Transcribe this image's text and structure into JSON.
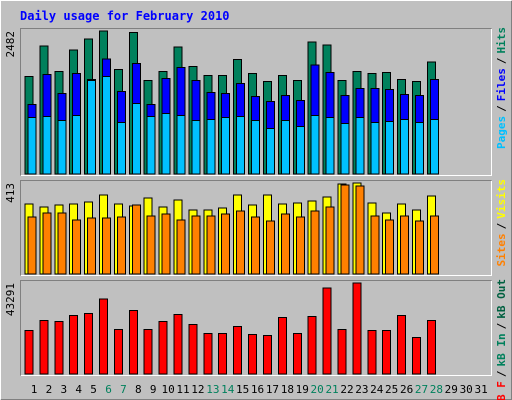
{
  "chart_data": [
    {
      "type": "bar",
      "title": "Daily usage for February 2010",
      "ylim": [
        0,
        2482
      ],
      "yticks": [
        2482
      ],
      "legend_separator": "/",
      "series": [
        {
          "name": "Pages",
          "color": "#00c0ff",
          "values": [
            983,
            1000,
            931,
            1017,
            1621,
            1690,
            896,
            1224,
            1000,
            1052,
            1017,
            931,
            948,
            983,
            1000,
            931,
            793,
            931,
            828,
            1017,
            983,
            879,
            983,
            896,
            914,
            948,
            896,
            948,
            null,
            null,
            null
          ]
        },
        {
          "name": "Files",
          "color": "#0000ff",
          "values": [
            1207,
            1724,
            1396,
            1741,
            1638,
            2000,
            1431,
            1914,
            1207,
            1655,
            1845,
            1621,
            1414,
            1396,
            1569,
            1345,
            1259,
            1362,
            1276,
            1896,
            1758,
            1362,
            1483,
            1483,
            1465,
            1379,
            1362,
            1638,
            null,
            null,
            null
          ]
        },
        {
          "name": "Hits",
          "color": "#00805c",
          "values": [
            1690,
            2224,
            1776,
            2155,
            2345,
            2482,
            1810,
            2460,
            1620,
            1776,
            2207,
            1862,
            1707,
            1707,
            1983,
            1741,
            1603,
            1707,
            1620,
            2293,
            2241,
            1620,
            1776,
            1741,
            1758,
            1638,
            1603,
            1948,
            null,
            null,
            null
          ]
        }
      ]
    },
    {
      "type": "bar",
      "ylim": [
        0,
        413
      ],
      "yticks": [
        413
      ],
      "series": [
        {
          "name": "Sites",
          "color": "#ff8000",
          "values": [
            259,
            277,
            277,
            245,
            254,
            254,
            259,
            313,
            263,
            272,
            245,
            263,
            263,
            272,
            286,
            259,
            241,
            272,
            259,
            286,
            304,
            405,
            400,
            263,
            245,
            263,
            241,
            263,
            null,
            null,
            null
          ]
        },
        {
          "name": "Visits",
          "color": "#ffff00",
          "values": [
            318,
            304,
            313,
            318,
            327,
            359,
            318,
            309,
            345,
            304,
            336,
            291,
            291,
            300,
            359,
            313,
            359,
            318,
            322,
            331,
            350,
            409,
            413,
            322,
            277,
            318,
            291,
            354,
            null,
            null,
            null
          ]
        }
      ]
    },
    {
      "type": "bar",
      "ylim": [
        0,
        43291
      ],
      "yticks": [
        43291
      ],
      "categories": [
        "1",
        "2",
        "3",
        "4",
        "5",
        "6",
        "7",
        "8",
        "9",
        "10",
        "11",
        "12",
        "13",
        "14",
        "15",
        "16",
        "17",
        "18",
        "19",
        "20",
        "21",
        "22",
        "23",
        "24",
        "25",
        "26",
        "27",
        "28",
        "29",
        "30",
        "31"
      ],
      "category_colors": [
        "#000000",
        "#000000",
        "#000000",
        "#000000",
        "#000000",
        "#00805c",
        "#00805c",
        "#000000",
        "#000000",
        "#000000",
        "#000000",
        "#000000",
        "#00805c",
        "#00805c",
        "#000000",
        "#000000",
        "#000000",
        "#000000",
        "#000000",
        "#00805c",
        "#00805c",
        "#000000",
        "#000000",
        "#000000",
        "#000000",
        "#000000",
        "#00805c",
        "#00805c",
        "#000000",
        "#000000",
        "#000000"
      ],
      "series": [
        {
          "name": "kB F",
          "color": "#ff0000",
          "values": [
            20683,
            25493,
            25012,
            27898,
            28860,
            35594,
            21164,
            30303,
            21164,
            25012,
            28379,
            23569,
            19240,
            19240,
            22607,
            18759,
            18278,
            26936,
            19240,
            27417,
            40885,
            21164,
            43291,
            20683,
            20683,
            27898,
            17316,
            25493,
            null,
            null,
            null
          ]
        }
      ],
      "legend_extra": [
        {
          "name": "kB In",
          "color": "#00805c"
        },
        {
          "name": "kB Out",
          "color": "#006040"
        }
      ]
    }
  ]
}
